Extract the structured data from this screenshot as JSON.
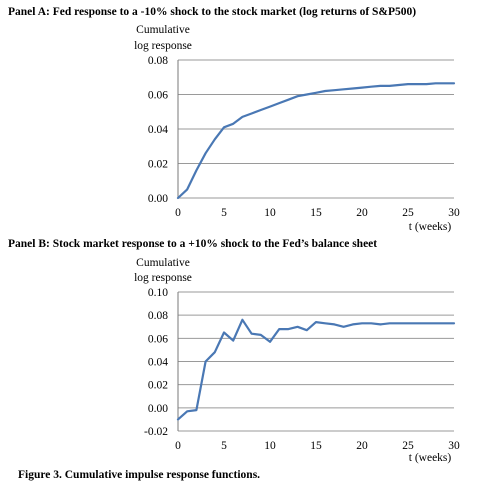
{
  "panel_a_title": "Panel A: Fed response to a -10% shock to the stock market (log returns of S&P500)",
  "panel_b_title": "Panel B: Stock market response to a +10% shock to the Fed’s balance sheet",
  "figure_caption": "Figure 3. Cumulative impulse response functions.",
  "chart_data": [
    {
      "type": "line",
      "title": "Panel A: Fed response to a -10% shock to the stock market (log returns of S&P500)",
      "ylabel_lines": [
        "Cumulative",
        "log response"
      ],
      "xlabel": "t (weeks)",
      "xlim": [
        0,
        30
      ],
      "ylim": [
        0.0,
        0.08
      ],
      "xticks": [
        "0",
        "5",
        "10",
        "15",
        "20",
        "25",
        "30"
      ],
      "yticks": [
        "0.00",
        "0.02",
        "0.04",
        "0.06",
        "0.08"
      ],
      "grid": true,
      "line_color": "#4a78b4",
      "series": [
        {
          "x": [
            0,
            1,
            2,
            3,
            4,
            5,
            6,
            7,
            8,
            9,
            10,
            11,
            12,
            13,
            14,
            15,
            16,
            17,
            18,
            19,
            20,
            21,
            22,
            23,
            24,
            25,
            26,
            27,
            28,
            29,
            30
          ],
          "values": [
            0.0,
            0.005,
            0.016,
            0.026,
            0.034,
            0.041,
            0.043,
            0.047,
            0.049,
            0.051,
            0.053,
            0.055,
            0.057,
            0.059,
            0.06,
            0.061,
            0.062,
            0.0625,
            0.063,
            0.0635,
            0.064,
            0.0645,
            0.065,
            0.065,
            0.0655,
            0.066,
            0.066,
            0.066,
            0.0665,
            0.0665,
            0.0665
          ]
        }
      ]
    },
    {
      "type": "line",
      "title": "Panel B: Stock market response to a +10% shock to the Fed’s balance sheet",
      "ylabel_lines": [
        "Cumulative",
        "log response"
      ],
      "xlabel": "t (weeks)",
      "xlim": [
        0,
        30
      ],
      "ylim": [
        -0.02,
        0.1
      ],
      "xticks": [
        "0",
        "5",
        "10",
        "15",
        "20",
        "25",
        "30"
      ],
      "yticks": [
        "-0.02",
        "0.00",
        "0.02",
        "0.04",
        "0.06",
        "0.08",
        "0.10"
      ],
      "grid": true,
      "line_color": "#4a78b4",
      "series": [
        {
          "x": [
            0,
            1,
            2,
            3,
            4,
            5,
            6,
            7,
            8,
            9,
            10,
            11,
            12,
            13,
            14,
            15,
            16,
            17,
            18,
            19,
            20,
            21,
            22,
            23,
            24,
            25,
            26,
            27,
            28,
            29,
            30
          ],
          "values": [
            -0.01,
            -0.003,
            -0.002,
            0.04,
            0.048,
            0.065,
            0.058,
            0.076,
            0.064,
            0.063,
            0.057,
            0.068,
            0.068,
            0.07,
            0.067,
            0.074,
            0.073,
            0.072,
            0.07,
            0.072,
            0.073,
            0.073,
            0.072,
            0.073,
            0.073,
            0.073,
            0.073,
            0.073,
            0.073,
            0.073,
            0.073
          ]
        }
      ]
    }
  ]
}
